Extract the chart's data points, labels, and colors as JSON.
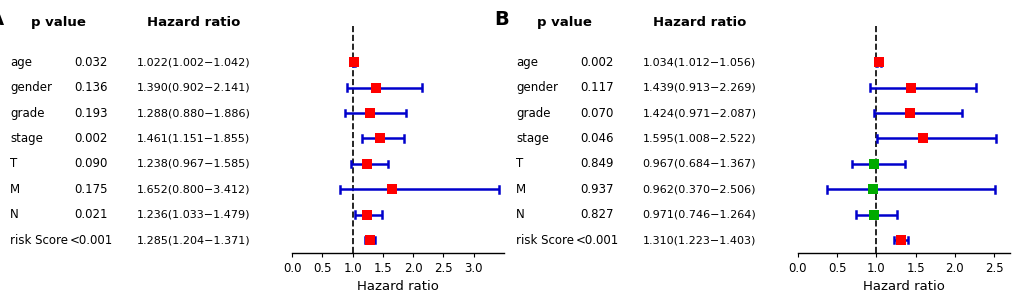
{
  "panel_A": {
    "label": "A",
    "variables": [
      "age",
      "gender",
      "grade",
      "stage",
      "T",
      "M",
      "N",
      "risk Score"
    ],
    "pvalues": [
      "0.032",
      "0.136",
      "0.193",
      "0.002",
      "0.090",
      "0.175",
      "0.021",
      "<0.001"
    ],
    "hr_labels": [
      "1.022(1.002−1.042)",
      "1.390(0.902−2.141)",
      "1.288(0.880−1.886)",
      "1.461(1.151−1.855)",
      "1.238(0.967−1.585)",
      "1.652(0.800−3.412)",
      "1.236(1.033−1.479)",
      "1.285(1.204−1.371)"
    ],
    "hr": [
      1.022,
      1.39,
      1.288,
      1.461,
      1.238,
      1.652,
      1.236,
      1.285
    ],
    "lower": [
      1.002,
      0.902,
      0.88,
      1.151,
      0.967,
      0.8,
      1.033,
      1.204
    ],
    "upper": [
      1.042,
      2.141,
      1.886,
      1.855,
      1.585,
      3.412,
      1.479,
      1.371
    ],
    "colors": [
      "#FF0000",
      "#FF0000",
      "#FF0000",
      "#FF0000",
      "#FF0000",
      "#FF0000",
      "#FF0000",
      "#FF0000"
    ],
    "xlim": [
      0.0,
      3.5
    ],
    "xticks": [
      0.0,
      0.5,
      1.0,
      1.5,
      2.0,
      2.5,
      3.0
    ],
    "xlabel": "Hazard ratio",
    "ref_line": 1.0
  },
  "panel_B": {
    "label": "B",
    "variables": [
      "age",
      "gender",
      "grade",
      "stage",
      "T",
      "M",
      "N",
      "risk Score"
    ],
    "pvalues": [
      "0.002",
      "0.117",
      "0.070",
      "0.046",
      "0.849",
      "0.937",
      "0.827",
      "<0.001"
    ],
    "hr_labels": [
      "1.034(1.012−1.056)",
      "1.439(0.913−2.269)",
      "1.424(0.971−2.087)",
      "1.595(1.008−2.522)",
      "0.967(0.684−1.367)",
      "0.962(0.370−2.506)",
      "0.971(0.746−1.264)",
      "1.310(1.223−1.403)"
    ],
    "hr": [
      1.034,
      1.439,
      1.424,
      1.595,
      0.967,
      0.962,
      0.971,
      1.31
    ],
    "lower": [
      1.012,
      0.913,
      0.971,
      1.008,
      0.684,
      0.37,
      0.746,
      1.223
    ],
    "upper": [
      1.056,
      2.269,
      2.087,
      2.522,
      1.367,
      2.506,
      1.264,
      1.403
    ],
    "colors": [
      "#FF0000",
      "#FF0000",
      "#FF0000",
      "#FF0000",
      "#00AA00",
      "#00AA00",
      "#00AA00",
      "#FF0000"
    ],
    "xlim": [
      0.0,
      2.7
    ],
    "xticks": [
      0.0,
      0.5,
      1.0,
      1.5,
      2.0,
      2.5
    ],
    "xlabel": "Hazard ratio",
    "ref_line": 1.0
  },
  "bg_color": "#FFFFFF",
  "line_color": "#0000CC",
  "marker_size": 7,
  "var_fontsize": 8.5,
  "pval_fontsize": 8.5,
  "hr_label_fontsize": 8.0,
  "header_fontsize": 9.5,
  "axis_label_fontsize": 9.5,
  "tick_fontsize": 8.5,
  "panel_label_fontsize": 14
}
